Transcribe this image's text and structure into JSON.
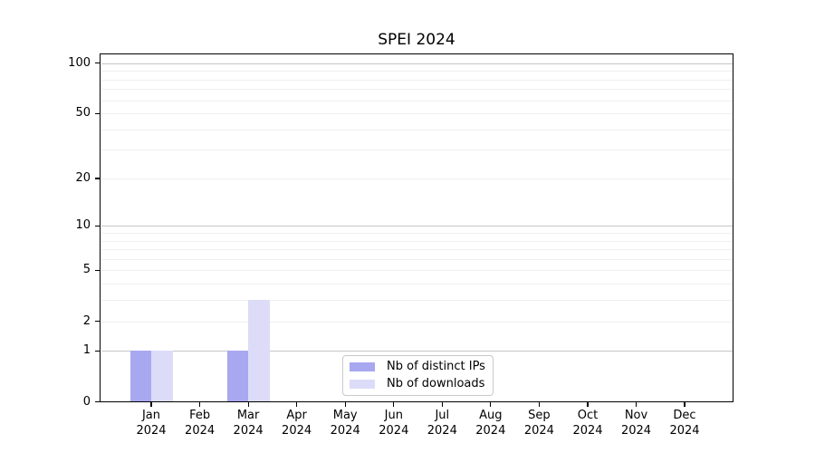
{
  "chart_data": {
    "type": "bar",
    "title": "SPEI 2024",
    "categories": [
      "Jan",
      "Feb",
      "Mar",
      "Apr",
      "May",
      "Jun",
      "Jul",
      "Aug",
      "Sep",
      "Oct",
      "Nov",
      "Dec"
    ],
    "x_year": "2024",
    "series": [
      {
        "name": "Nb of distinct IPs",
        "color": "#a8a8f0",
        "values": [
          1,
          0,
          1,
          0,
          0,
          0,
          0,
          0,
          0,
          0,
          0,
          0
        ]
      },
      {
        "name": "Nb of downloads",
        "color": "#dcdcf8",
        "values": [
          1,
          0,
          3,
          0,
          0,
          0,
          0,
          0,
          0,
          0,
          0,
          0
        ]
      }
    ],
    "xlabel": "",
    "ylabel": "",
    "yscale": "log1p",
    "ylim": [
      0,
      113
    ],
    "yticks_labeled": [
      0,
      1,
      2,
      5,
      10,
      20,
      50,
      100
    ],
    "gridlines_dark": [
      1,
      10,
      100
    ],
    "gridlines_light": [
      2,
      3,
      4,
      5,
      6,
      7,
      8,
      9,
      20,
      30,
      40,
      50,
      60,
      70,
      80,
      90
    ],
    "grid": true,
    "legend_position": "bottom-center"
  }
}
